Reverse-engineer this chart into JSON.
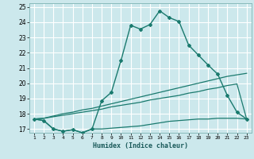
{
  "xlabel": "Humidex (Indice chaleur)",
  "background_color": "#cce8ec",
  "grid_color": "#ffffff",
  "line_color": "#1a7a6e",
  "xlim": [
    0.5,
    23.5
  ],
  "ylim": [
    16.75,
    25.25
  ],
  "xticks": [
    1,
    2,
    3,
    4,
    5,
    6,
    7,
    8,
    9,
    10,
    11,
    12,
    13,
    14,
    15,
    16,
    17,
    18,
    19,
    20,
    21,
    22,
    23
  ],
  "yticks": [
    17,
    18,
    19,
    20,
    21,
    22,
    23,
    24,
    25
  ],
  "series": [
    {
      "x": [
        1,
        2,
        3,
        4,
        5,
        6,
        7,
        8,
        9,
        10,
        11,
        12,
        13,
        14,
        15,
        16,
        17,
        18,
        19,
        20,
        21,
        22,
        23
      ],
      "y": [
        17.65,
        17.55,
        17.0,
        16.85,
        16.95,
        16.75,
        17.0,
        18.85,
        19.4,
        21.5,
        23.8,
        23.55,
        23.85,
        24.75,
        24.3,
        24.05,
        22.5,
        21.85,
        21.2,
        20.6,
        19.2,
        18.1,
        17.65
      ],
      "marker": "D",
      "markersize": 2.0,
      "linewidth": 1.0,
      "has_marker": true
    },
    {
      "x": [
        1,
        2,
        3,
        4,
        5,
        6,
        7,
        8,
        9,
        10,
        11,
        12,
        13,
        14,
        15,
        16,
        17,
        18,
        19,
        20,
        21,
        22,
        23
      ],
      "y": [
        17.65,
        17.7,
        17.85,
        18.0,
        18.1,
        18.25,
        18.35,
        18.5,
        18.65,
        18.8,
        18.95,
        19.1,
        19.25,
        19.4,
        19.55,
        19.7,
        19.85,
        20.0,
        20.15,
        20.3,
        20.45,
        20.55,
        20.65
      ],
      "marker": null,
      "markersize": 0,
      "linewidth": 0.9,
      "has_marker": false
    },
    {
      "x": [
        1,
        2,
        3,
        4,
        5,
        6,
        7,
        8,
        9,
        10,
        11,
        12,
        13,
        14,
        15,
        16,
        17,
        18,
        19,
        20,
        21,
        22,
        23
      ],
      "y": [
        17.65,
        17.7,
        17.8,
        17.9,
        18.0,
        18.1,
        18.2,
        18.3,
        18.45,
        18.55,
        18.65,
        18.75,
        18.9,
        19.0,
        19.1,
        19.2,
        19.35,
        19.45,
        19.6,
        19.7,
        19.85,
        19.95,
        17.65
      ],
      "marker": null,
      "markersize": 0,
      "linewidth": 0.9,
      "has_marker": false
    },
    {
      "x": [
        1,
        2,
        3,
        4,
        5,
        6,
        7,
        8,
        9,
        10,
        11,
        12,
        13,
        14,
        15,
        16,
        17,
        18,
        19,
        20,
        21,
        22,
        23
      ],
      "y": [
        17.65,
        17.55,
        17.0,
        16.85,
        16.95,
        16.75,
        17.0,
        17.0,
        17.05,
        17.1,
        17.15,
        17.2,
        17.3,
        17.4,
        17.5,
        17.55,
        17.6,
        17.65,
        17.65,
        17.7,
        17.7,
        17.7,
        17.65
      ],
      "marker": null,
      "markersize": 0,
      "linewidth": 0.9,
      "has_marker": false
    }
  ]
}
